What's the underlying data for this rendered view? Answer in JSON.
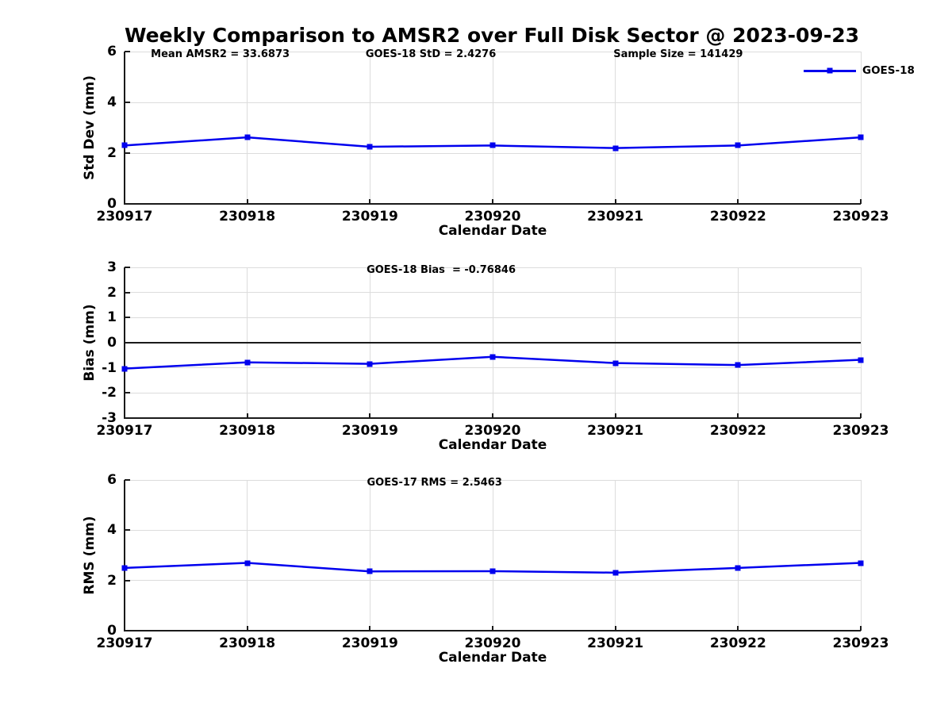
{
  "figure_title": "Weekly Comparison to AMSR2 over Full Disk Sector @ 2023-09-23",
  "legend": {
    "label": "GOES-18"
  },
  "colors": {
    "line": "#0000ee",
    "grid": "#dcdcdc",
    "axis": "#1a1a1a",
    "zero_line": "#1a1a1a"
  },
  "chart_data": [
    {
      "type": "line",
      "x": [
        "230917",
        "230918",
        "230919",
        "230920",
        "230921",
        "230922",
        "230923"
      ],
      "series": [
        {
          "name": "GOES-18",
          "color": "#0000ee",
          "marker": "square",
          "values": [
            2.3,
            2.62,
            2.25,
            2.3,
            2.2,
            2.3,
            2.62
          ]
        }
      ],
      "xlabel": "Calendar Date",
      "ylabel": "Std Dev (mm)",
      "ylim": [
        0,
        6
      ],
      "yticks": [
        0,
        2,
        4,
        6
      ],
      "grid": true,
      "legend_position": "upper right",
      "annotations": [
        {
          "text": "Mean AMSR2 = 33.6873",
          "x_pct": 13.0
        },
        {
          "text": "GOES-18 StD = 2.4276",
          "x_pct": 41.6
        },
        {
          "text": "Sample Size = 141429",
          "x_pct": 75.2
        }
      ]
    },
    {
      "type": "line",
      "x": [
        "230917",
        "230918",
        "230919",
        "230920",
        "230921",
        "230922",
        "230923"
      ],
      "series": [
        {
          "name": "GOES-18",
          "color": "#0000ee",
          "marker": "square",
          "values": [
            -1.03,
            -0.78,
            -0.84,
            -0.56,
            -0.81,
            -0.89,
            -0.68
          ]
        }
      ],
      "xlabel": "Calendar Date",
      "ylabel": "Bias (mm)",
      "ylim": [
        -3,
        3
      ],
      "yticks": [
        -3,
        -2,
        -1,
        0,
        1,
        2,
        3
      ],
      "grid": true,
      "zero_line": true,
      "annotations": [
        {
          "text": "GOES-18 Bias  = -0.76846",
          "x_pct": 43.0
        }
      ]
    },
    {
      "type": "line",
      "x": [
        "230917",
        "230918",
        "230919",
        "230920",
        "230921",
        "230922",
        "230923"
      ],
      "series": [
        {
          "name": "GOES-18",
          "color": "#0000ee",
          "marker": "square",
          "values": [
            2.5,
            2.7,
            2.36,
            2.37,
            2.31,
            2.5,
            2.7
          ]
        }
      ],
      "xlabel": "Calendar Date",
      "ylabel": "RMS (mm)",
      "ylim": [
        0,
        6
      ],
      "yticks": [
        0,
        2,
        4,
        6
      ],
      "grid": true,
      "annotations": [
        {
          "text": "GOES-17 RMS = 2.5463",
          "x_pct": 42.1
        }
      ]
    }
  ]
}
